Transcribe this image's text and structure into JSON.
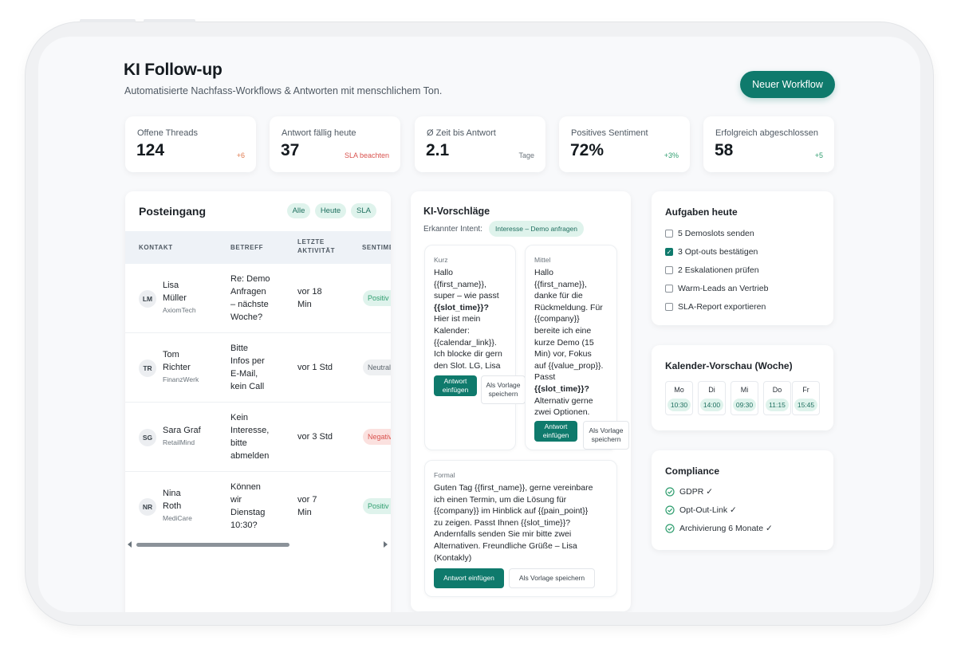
{
  "header": {
    "title": "KI Follow-up",
    "subtitle": "Automatisierte Nachfass-Workflows & Antworten mit menschlichem Ton.",
    "new_workflow": "Neuer Workflow"
  },
  "stats": [
    {
      "label": "Offene Threads",
      "value": "124",
      "meta": "+6"
    },
    {
      "label": "Antwort fällig heute",
      "value": "37",
      "meta": "SLA beachten"
    },
    {
      "label": "Ø Zeit bis Antwort",
      "value": "2.1",
      "meta": "Tage"
    },
    {
      "label": "Positives Sentiment",
      "value": "72%",
      "meta": "+3%"
    },
    {
      "label": "Erfolgreich abgeschlossen",
      "value": "58",
      "meta": "+5"
    }
  ],
  "colors": {
    "accent": "#0f7a6c",
    "positive": "#2f9e6f",
    "negative": "#d9534f",
    "warning": "#e07a4f"
  },
  "inbox": {
    "title": "Posteingang",
    "filters": [
      "Alle",
      "Heute",
      "SLA"
    ],
    "columns": [
      "KONTAKT",
      "BETREFF",
      "LETZTE",
      "AKTIVITÄT",
      "SENTIMENT"
    ],
    "rows": [
      {
        "initials": "LM",
        "name_1": "Lisa",
        "name_2": "Müller",
        "company": "AxiomTech",
        "subject": [
          "Re: Demo",
          "Anfragen",
          "– nächste",
          "Woche?"
        ],
        "activity": [
          "vor 18",
          "Min"
        ],
        "sentiment": "Positiv"
      },
      {
        "initials": "TR",
        "name_1": "Tom",
        "name_2": "Richter",
        "company": "FinanzWerk",
        "subject": [
          "Bitte",
          "Infos per",
          "E-Mail,",
          "kein Call"
        ],
        "activity": [
          "vor 1 Std"
        ],
        "sentiment": "Neutral"
      },
      {
        "initials": "SG",
        "name_1": "Sara Graf",
        "name_2": "",
        "company": "RetailMind",
        "subject": [
          "Kein",
          "Interesse,",
          "bitte",
          "abmelden"
        ],
        "activity": [
          "vor 3 Std"
        ],
        "sentiment": "Negativ"
      },
      {
        "initials": "NR",
        "name_1": "Nina",
        "name_2": "Roth",
        "company": "MediCare",
        "subject": [
          "Können",
          "wir",
          "Dienstag",
          "10:30?"
        ],
        "activity": [
          "vor 7",
          "Min"
        ],
        "sentiment": "Positiv"
      }
    ]
  },
  "ai": {
    "title": "KI-Vorschläge",
    "intent_label": "Erkannter Intent:",
    "intent_value": "Interesse – Demo anfragen",
    "insert_label": "Antwort einfügen",
    "save_label": "Als Vorlage speichern",
    "suggestions": [
      {
        "kind": "Kurz",
        "lines": [
          "Hallo",
          "{{first_name}},",
          "super – wie passt",
          "{{slot_time}}?",
          "Hier ist mein",
          "Kalender:",
          "{{calendar_link}}.",
          "Ich blocke dir gern",
          "den Slot. LG, Lisa"
        ]
      },
      {
        "kind": "Mittel",
        "lines": [
          "Hallo",
          "{{first_name}},",
          "danke für die",
          "Rückmeldung. Für",
          "{{company}}",
          "bereite ich eine",
          "kurze Demo (15",
          "Min) vor, Fokus",
          "auf {{value_prop}}.",
          "Passt",
          "{{slot_time}}?",
          "Alternativ gerne",
          "zwei Optionen."
        ]
      },
      {
        "kind": "Formal",
        "lines": [
          "Guten Tag {{first_name}}, gerne vereinbare",
          "ich einen Termin, um die Lösung für",
          "{{company}} im Hinblick auf {{pain_point}}",
          "zu zeigen. Passt Ihnen {{slot_time}}?",
          "Andernfalls senden Sie mir bitte zwei",
          "Alternativen. Freundliche Grüße – Lisa",
          "(Kontakly)"
        ]
      }
    ]
  },
  "tasks": {
    "title": "Aufgaben heute",
    "items": [
      {
        "label": "5 Demoslots senden",
        "checked": false
      },
      {
        "label": "3 Opt-outs bestätigen",
        "checked": true
      },
      {
        "label": "2 Eskalationen prüfen",
        "checked": false
      },
      {
        "label": "Warm-Leads an Vertrieb",
        "checked": false
      },
      {
        "label": "SLA-Report exportieren",
        "checked": false
      }
    ]
  },
  "calendar": {
    "title": "Kalender-Vorschau (Woche)",
    "days": [
      {
        "day": "Mo",
        "slot": "10:30"
      },
      {
        "day": "Di",
        "slot": "14:00"
      },
      {
        "day": "Mi",
        "slot": "09:30"
      },
      {
        "day": "Do",
        "slot": "11:15"
      },
      {
        "day": "Fr",
        "slot": "15:45"
      }
    ]
  },
  "compliance": {
    "title": "Compliance",
    "items": [
      "GDPR ✓",
      "Opt-Out-Link ✓",
      "Archivierung 6 Monate ✓"
    ]
  }
}
